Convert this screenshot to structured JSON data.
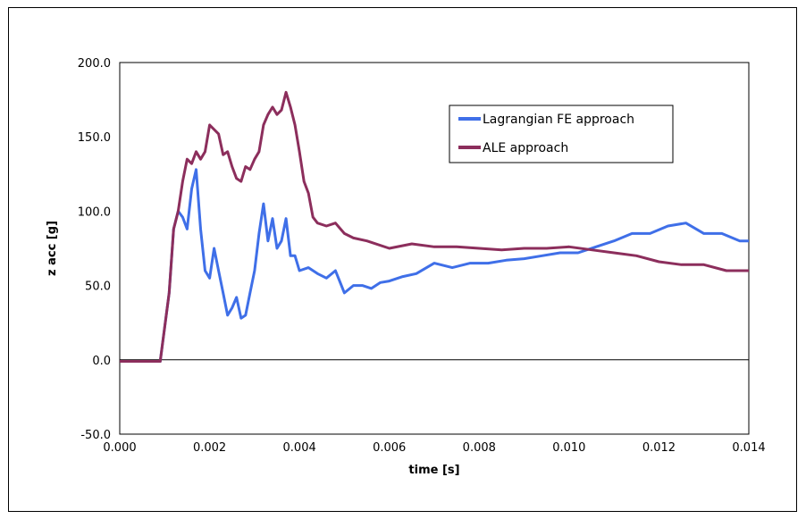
{
  "chart_data": {
    "type": "line",
    "title": "",
    "xlabel": "time [s]",
    "ylabel": "z acc [g]",
    "xlim": [
      0,
      0.014
    ],
    "ylim": [
      -50,
      200
    ],
    "x_ticks": [
      0,
      0.002,
      0.004,
      0.006,
      0.008,
      0.01,
      0.012,
      0.014
    ],
    "x_tick_labels": [
      "0.000",
      "0.002",
      "0.004",
      "0.006",
      "0.008",
      "0.010",
      "0.012",
      "0.014"
    ],
    "y_ticks": [
      -50,
      0,
      50,
      100,
      150,
      200
    ],
    "y_tick_labels": [
      "-50.0",
      "0.0",
      "50.0",
      "100.0",
      "150.0",
      "200.0"
    ],
    "grid": true,
    "legend_position": "top-right",
    "series": [
      {
        "name": "Lagrangian FE approach",
        "color": "#3f6fe8",
        "x": [
          0,
          0.0009,
          0.0011,
          0.0012,
          0.0013,
          0.0014,
          0.0015,
          0.0016,
          0.0017,
          0.0018,
          0.0019,
          0.002,
          0.0021,
          0.0022,
          0.0023,
          0.0024,
          0.0025,
          0.0026,
          0.0027,
          0.0028,
          0.0029,
          0.003,
          0.0031,
          0.0032,
          0.0033,
          0.0034,
          0.0035,
          0.0036,
          0.0037,
          0.0038,
          0.0039,
          0.004,
          0.0042,
          0.0044,
          0.0046,
          0.0048,
          0.005,
          0.0052,
          0.0054,
          0.0056,
          0.0058,
          0.006,
          0.0063,
          0.0066,
          0.007,
          0.0074,
          0.0078,
          0.0082,
          0.0086,
          0.009,
          0.0094,
          0.0098,
          0.0102,
          0.0106,
          0.011,
          0.0114,
          0.0118,
          0.0122,
          0.0126,
          0.013,
          0.0134,
          0.0138,
          0.014
        ],
        "y": [
          -1,
          -1,
          45,
          88,
          100,
          96,
          88,
          115,
          128,
          88,
          60,
          55,
          75,
          60,
          45,
          30,
          35,
          42,
          28,
          30,
          45,
          60,
          85,
          105,
          80,
          95,
          75,
          80,
          95,
          70,
          70,
          60,
          62,
          58,
          55,
          60,
          45,
          50,
          50,
          48,
          52,
          53,
          56,
          58,
          65,
          62,
          65,
          65,
          67,
          68,
          70,
          72,
          72,
          76,
          80,
          85,
          85,
          90,
          92,
          85,
          85,
          80,
          80
        ]
      },
      {
        "name": "ALE approach",
        "color": "#8c2e5c",
        "x": [
          0,
          0.0009,
          0.0011,
          0.0012,
          0.0013,
          0.0014,
          0.0015,
          0.0016,
          0.0017,
          0.0018,
          0.0019,
          0.002,
          0.0021,
          0.0022,
          0.0023,
          0.0024,
          0.0025,
          0.0026,
          0.0027,
          0.0028,
          0.0029,
          0.003,
          0.0031,
          0.0032,
          0.0033,
          0.0034,
          0.0035,
          0.0036,
          0.0037,
          0.0038,
          0.0039,
          0.004,
          0.0041,
          0.0042,
          0.0043,
          0.0044,
          0.0046,
          0.0048,
          0.005,
          0.0052,
          0.0055,
          0.006,
          0.0065,
          0.007,
          0.0075,
          0.008,
          0.0085,
          0.009,
          0.0095,
          0.01,
          0.0105,
          0.011,
          0.0115,
          0.012,
          0.0125,
          0.013,
          0.0135,
          0.014
        ],
        "y": [
          -1,
          -1,
          45,
          88,
          100,
          120,
          135,
          132,
          140,
          135,
          140,
          158,
          155,
          152,
          138,
          140,
          130,
          122,
          120,
          130,
          128,
          135,
          140,
          158,
          165,
          170,
          165,
          168,
          180,
          170,
          158,
          140,
          120,
          112,
          96,
          92,
          90,
          92,
          85,
          82,
          80,
          75,
          78,
          76,
          76,
          75,
          74,
          75,
          75,
          76,
          74,
          72,
          70,
          66,
          64,
          64,
          60,
          60
        ]
      }
    ]
  }
}
